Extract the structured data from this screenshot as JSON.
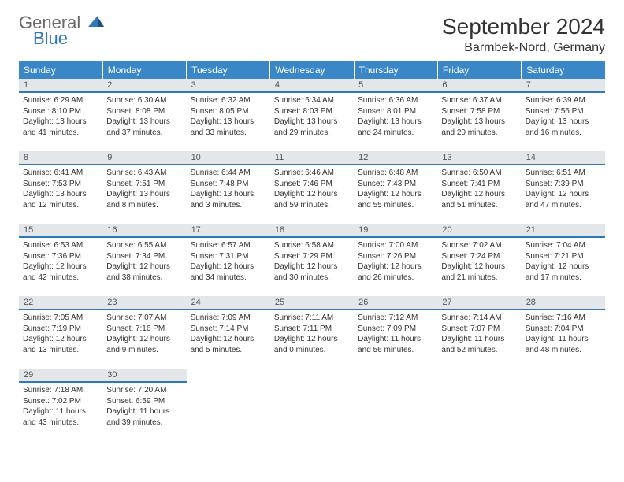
{
  "logo": {
    "word1": "General",
    "word2": "Blue",
    "icon_color": "#2f78b7"
  },
  "header": {
    "month_title": "September 2024",
    "location": "Barmbek-Nord, Germany"
  },
  "colors": {
    "header_bg": "#3a87c8",
    "header_text": "#ffffff",
    "daynum_bg": "#e3e7ea",
    "daynum_border": "#2f78b7",
    "text": "#333333"
  },
  "weekdays": [
    "Sunday",
    "Monday",
    "Tuesday",
    "Wednesday",
    "Thursday",
    "Friday",
    "Saturday"
  ],
  "weeks": [
    [
      {
        "day": "1",
        "sunrise": "Sunrise: 6:29 AM",
        "sunset": "Sunset: 8:10 PM",
        "daylight": "Daylight: 13 hours and 41 minutes."
      },
      {
        "day": "2",
        "sunrise": "Sunrise: 6:30 AM",
        "sunset": "Sunset: 8:08 PM",
        "daylight": "Daylight: 13 hours and 37 minutes."
      },
      {
        "day": "3",
        "sunrise": "Sunrise: 6:32 AM",
        "sunset": "Sunset: 8:05 PM",
        "daylight": "Daylight: 13 hours and 33 minutes."
      },
      {
        "day": "4",
        "sunrise": "Sunrise: 6:34 AM",
        "sunset": "Sunset: 8:03 PM",
        "daylight": "Daylight: 13 hours and 29 minutes."
      },
      {
        "day": "5",
        "sunrise": "Sunrise: 6:36 AM",
        "sunset": "Sunset: 8:01 PM",
        "daylight": "Daylight: 13 hours and 24 minutes."
      },
      {
        "day": "6",
        "sunrise": "Sunrise: 6:37 AM",
        "sunset": "Sunset: 7:58 PM",
        "daylight": "Daylight: 13 hours and 20 minutes."
      },
      {
        "day": "7",
        "sunrise": "Sunrise: 6:39 AM",
        "sunset": "Sunset: 7:56 PM",
        "daylight": "Daylight: 13 hours and 16 minutes."
      }
    ],
    [
      {
        "day": "8",
        "sunrise": "Sunrise: 6:41 AM",
        "sunset": "Sunset: 7:53 PM",
        "daylight": "Daylight: 13 hours and 12 minutes."
      },
      {
        "day": "9",
        "sunrise": "Sunrise: 6:43 AM",
        "sunset": "Sunset: 7:51 PM",
        "daylight": "Daylight: 13 hours and 8 minutes."
      },
      {
        "day": "10",
        "sunrise": "Sunrise: 6:44 AM",
        "sunset": "Sunset: 7:48 PM",
        "daylight": "Daylight: 13 hours and 3 minutes."
      },
      {
        "day": "11",
        "sunrise": "Sunrise: 6:46 AM",
        "sunset": "Sunset: 7:46 PM",
        "daylight": "Daylight: 12 hours and 59 minutes."
      },
      {
        "day": "12",
        "sunrise": "Sunrise: 6:48 AM",
        "sunset": "Sunset: 7:43 PM",
        "daylight": "Daylight: 12 hours and 55 minutes."
      },
      {
        "day": "13",
        "sunrise": "Sunrise: 6:50 AM",
        "sunset": "Sunset: 7:41 PM",
        "daylight": "Daylight: 12 hours and 51 minutes."
      },
      {
        "day": "14",
        "sunrise": "Sunrise: 6:51 AM",
        "sunset": "Sunset: 7:39 PM",
        "daylight": "Daylight: 12 hours and 47 minutes."
      }
    ],
    [
      {
        "day": "15",
        "sunrise": "Sunrise: 6:53 AM",
        "sunset": "Sunset: 7:36 PM",
        "daylight": "Daylight: 12 hours and 42 minutes."
      },
      {
        "day": "16",
        "sunrise": "Sunrise: 6:55 AM",
        "sunset": "Sunset: 7:34 PM",
        "daylight": "Daylight: 12 hours and 38 minutes."
      },
      {
        "day": "17",
        "sunrise": "Sunrise: 6:57 AM",
        "sunset": "Sunset: 7:31 PM",
        "daylight": "Daylight: 12 hours and 34 minutes."
      },
      {
        "day": "18",
        "sunrise": "Sunrise: 6:58 AM",
        "sunset": "Sunset: 7:29 PM",
        "daylight": "Daylight: 12 hours and 30 minutes."
      },
      {
        "day": "19",
        "sunrise": "Sunrise: 7:00 AM",
        "sunset": "Sunset: 7:26 PM",
        "daylight": "Daylight: 12 hours and 26 minutes."
      },
      {
        "day": "20",
        "sunrise": "Sunrise: 7:02 AM",
        "sunset": "Sunset: 7:24 PM",
        "daylight": "Daylight: 12 hours and 21 minutes."
      },
      {
        "day": "21",
        "sunrise": "Sunrise: 7:04 AM",
        "sunset": "Sunset: 7:21 PM",
        "daylight": "Daylight: 12 hours and 17 minutes."
      }
    ],
    [
      {
        "day": "22",
        "sunrise": "Sunrise: 7:05 AM",
        "sunset": "Sunset: 7:19 PM",
        "daylight": "Daylight: 12 hours and 13 minutes."
      },
      {
        "day": "23",
        "sunrise": "Sunrise: 7:07 AM",
        "sunset": "Sunset: 7:16 PM",
        "daylight": "Daylight: 12 hours and 9 minutes."
      },
      {
        "day": "24",
        "sunrise": "Sunrise: 7:09 AM",
        "sunset": "Sunset: 7:14 PM",
        "daylight": "Daylight: 12 hours and 5 minutes."
      },
      {
        "day": "25",
        "sunrise": "Sunrise: 7:11 AM",
        "sunset": "Sunset: 7:11 PM",
        "daylight": "Daylight: 12 hours and 0 minutes."
      },
      {
        "day": "26",
        "sunrise": "Sunrise: 7:12 AM",
        "sunset": "Sunset: 7:09 PM",
        "daylight": "Daylight: 11 hours and 56 minutes."
      },
      {
        "day": "27",
        "sunrise": "Sunrise: 7:14 AM",
        "sunset": "Sunset: 7:07 PM",
        "daylight": "Daylight: 11 hours and 52 minutes."
      },
      {
        "day": "28",
        "sunrise": "Sunrise: 7:16 AM",
        "sunset": "Sunset: 7:04 PM",
        "daylight": "Daylight: 11 hours and 48 minutes."
      }
    ],
    [
      {
        "day": "29",
        "sunrise": "Sunrise: 7:18 AM",
        "sunset": "Sunset: 7:02 PM",
        "daylight": "Daylight: 11 hours and 43 minutes."
      },
      {
        "day": "30",
        "sunrise": "Sunrise: 7:20 AM",
        "sunset": "Sunset: 6:59 PM",
        "daylight": "Daylight: 11 hours and 39 minutes."
      },
      null,
      null,
      null,
      null,
      null
    ]
  ]
}
